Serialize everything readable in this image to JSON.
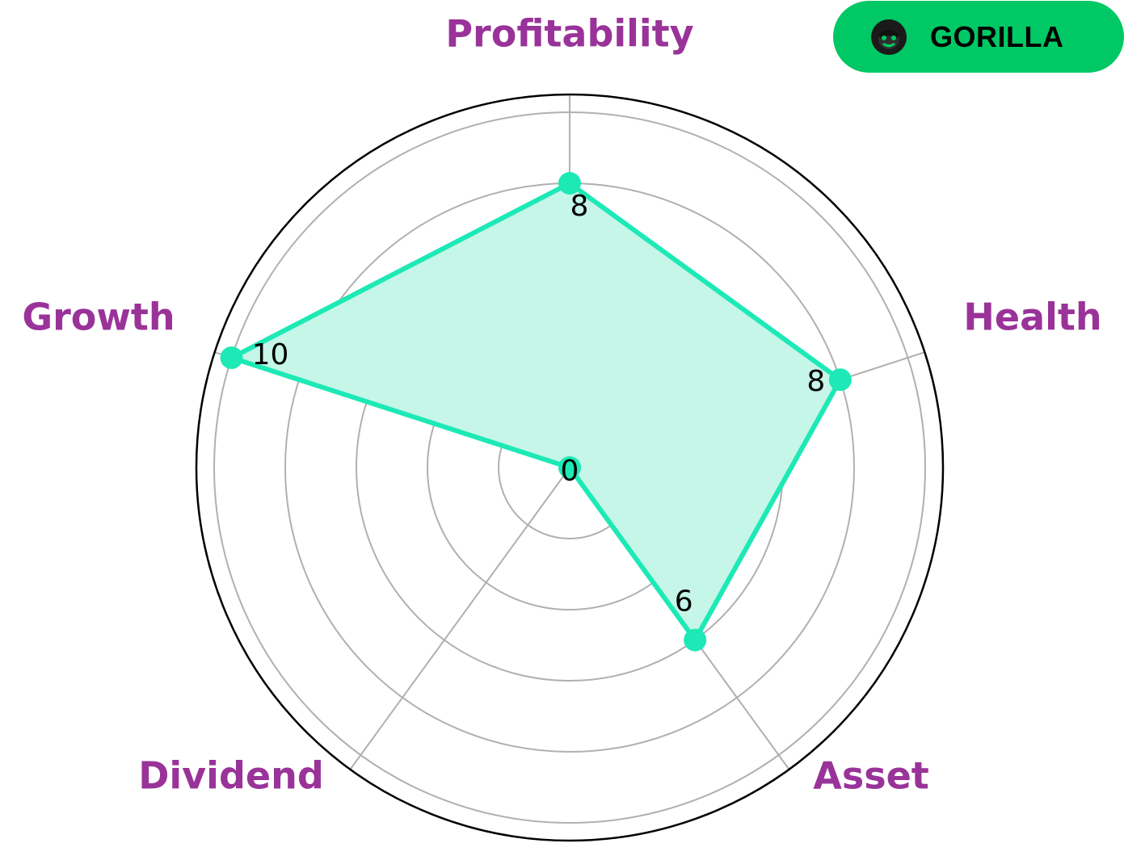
{
  "brand": {
    "name": "GORILLA",
    "icon": "gorilla-icon",
    "background_color": "#00c864"
  },
  "colors": {
    "series": "#1de9b6",
    "fill": "#c5f6e8",
    "axis_label": "#993399",
    "grid": "#b0b0b0",
    "outer_ring": "#000000"
  },
  "chart_data": {
    "type": "radar",
    "categories": [
      "Profitability",
      "Health",
      "Asset",
      "Dividend",
      "Growth"
    ],
    "series": [
      {
        "values": [
          8,
          8,
          6,
          0,
          10
        ]
      }
    ],
    "value_labels": [
      "8",
      "8",
      "6",
      "0",
      "10"
    ],
    "rlim": [
      0,
      10.5
    ],
    "grid_rings": [
      2,
      4,
      6,
      8,
      10
    ],
    "grid": true
  }
}
